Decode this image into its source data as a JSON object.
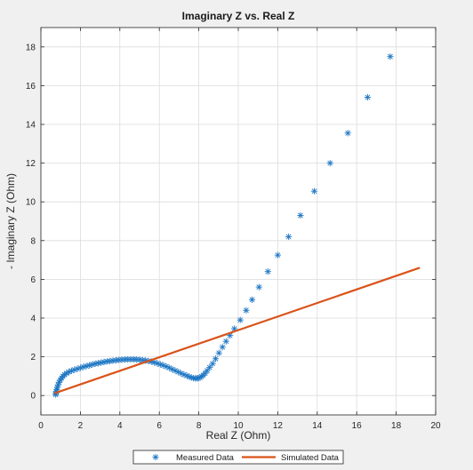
{
  "chart_data": {
    "type": "scatter",
    "title": "Imaginary Z vs. Real Z",
    "xlabel": "Real Z (Ohm)",
    "ylabel": "- Imaginary Z (Ohm)",
    "xlim": [
      0,
      20
    ],
    "ylim": [
      -1,
      19
    ],
    "xticks": [
      0,
      2,
      4,
      6,
      8,
      10,
      12,
      14,
      16,
      18,
      20
    ],
    "yticks": [
      0,
      2,
      4,
      6,
      8,
      10,
      12,
      14,
      16,
      18
    ],
    "grid": true,
    "legend_position": "bottom-outside",
    "series": [
      {
        "name": "Measured Data",
        "type": "scatter",
        "marker": "asterisk",
        "color": "#1f77c4",
        "x": [
          0.75,
          0.76,
          0.78,
          0.8,
          0.83,
          0.87,
          0.92,
          0.98,
          1.05,
          1.12,
          1.2,
          1.3,
          1.42,
          1.55,
          1.7,
          1.85,
          2.0,
          2.15,
          2.3,
          2.45,
          2.6,
          2.75,
          2.9,
          3.05,
          3.2,
          3.35,
          3.5,
          3.65,
          3.8,
          3.95,
          4.1,
          4.25,
          4.4,
          4.55,
          4.7,
          4.85,
          5.0,
          5.15,
          5.3,
          5.45,
          5.6,
          5.75,
          5.9,
          6.05,
          6.2,
          6.35,
          6.5,
          6.65,
          6.8,
          6.95,
          7.1,
          7.25,
          7.4,
          7.52,
          7.62,
          7.72,
          7.82,
          7.9,
          7.98,
          8.06,
          8.14,
          8.22,
          8.32,
          8.42,
          8.55,
          8.7,
          8.85,
          9.02,
          9.2,
          9.38,
          9.58,
          9.8,
          10.1,
          10.4,
          10.7,
          11.05,
          11.5,
          12.0,
          12.55,
          13.15,
          13.85,
          14.65,
          15.55,
          16.55,
          17.7
        ],
        "y": [
          0.05,
          0.12,
          0.2,
          0.3,
          0.42,
          0.55,
          0.68,
          0.8,
          0.9,
          1.0,
          1.08,
          1.15,
          1.22,
          1.28,
          1.33,
          1.38,
          1.43,
          1.48,
          1.52,
          1.56,
          1.6,
          1.64,
          1.67,
          1.7,
          1.73,
          1.76,
          1.78,
          1.8,
          1.82,
          1.84,
          1.85,
          1.86,
          1.87,
          1.87,
          1.87,
          1.86,
          1.85,
          1.83,
          1.81,
          1.78,
          1.75,
          1.71,
          1.66,
          1.61,
          1.56,
          1.5,
          1.43,
          1.36,
          1.29,
          1.22,
          1.15,
          1.08,
          1.02,
          0.97,
          0.93,
          0.9,
          0.89,
          0.89,
          0.9,
          0.93,
          0.98,
          1.05,
          1.15,
          1.28,
          1.45,
          1.65,
          1.9,
          2.2,
          2.5,
          2.8,
          3.1,
          3.45,
          3.9,
          4.4,
          4.95,
          5.6,
          6.4,
          7.25,
          8.2,
          9.3,
          10.55,
          12.0,
          13.55,
          15.4,
          17.5
        ]
      },
      {
        "name": "Simulated Data",
        "type": "line",
        "color": "#d95319",
        "x": [
          0.7,
          19.2
        ],
        "y": [
          0.12,
          6.6
        ]
      }
    ]
  }
}
